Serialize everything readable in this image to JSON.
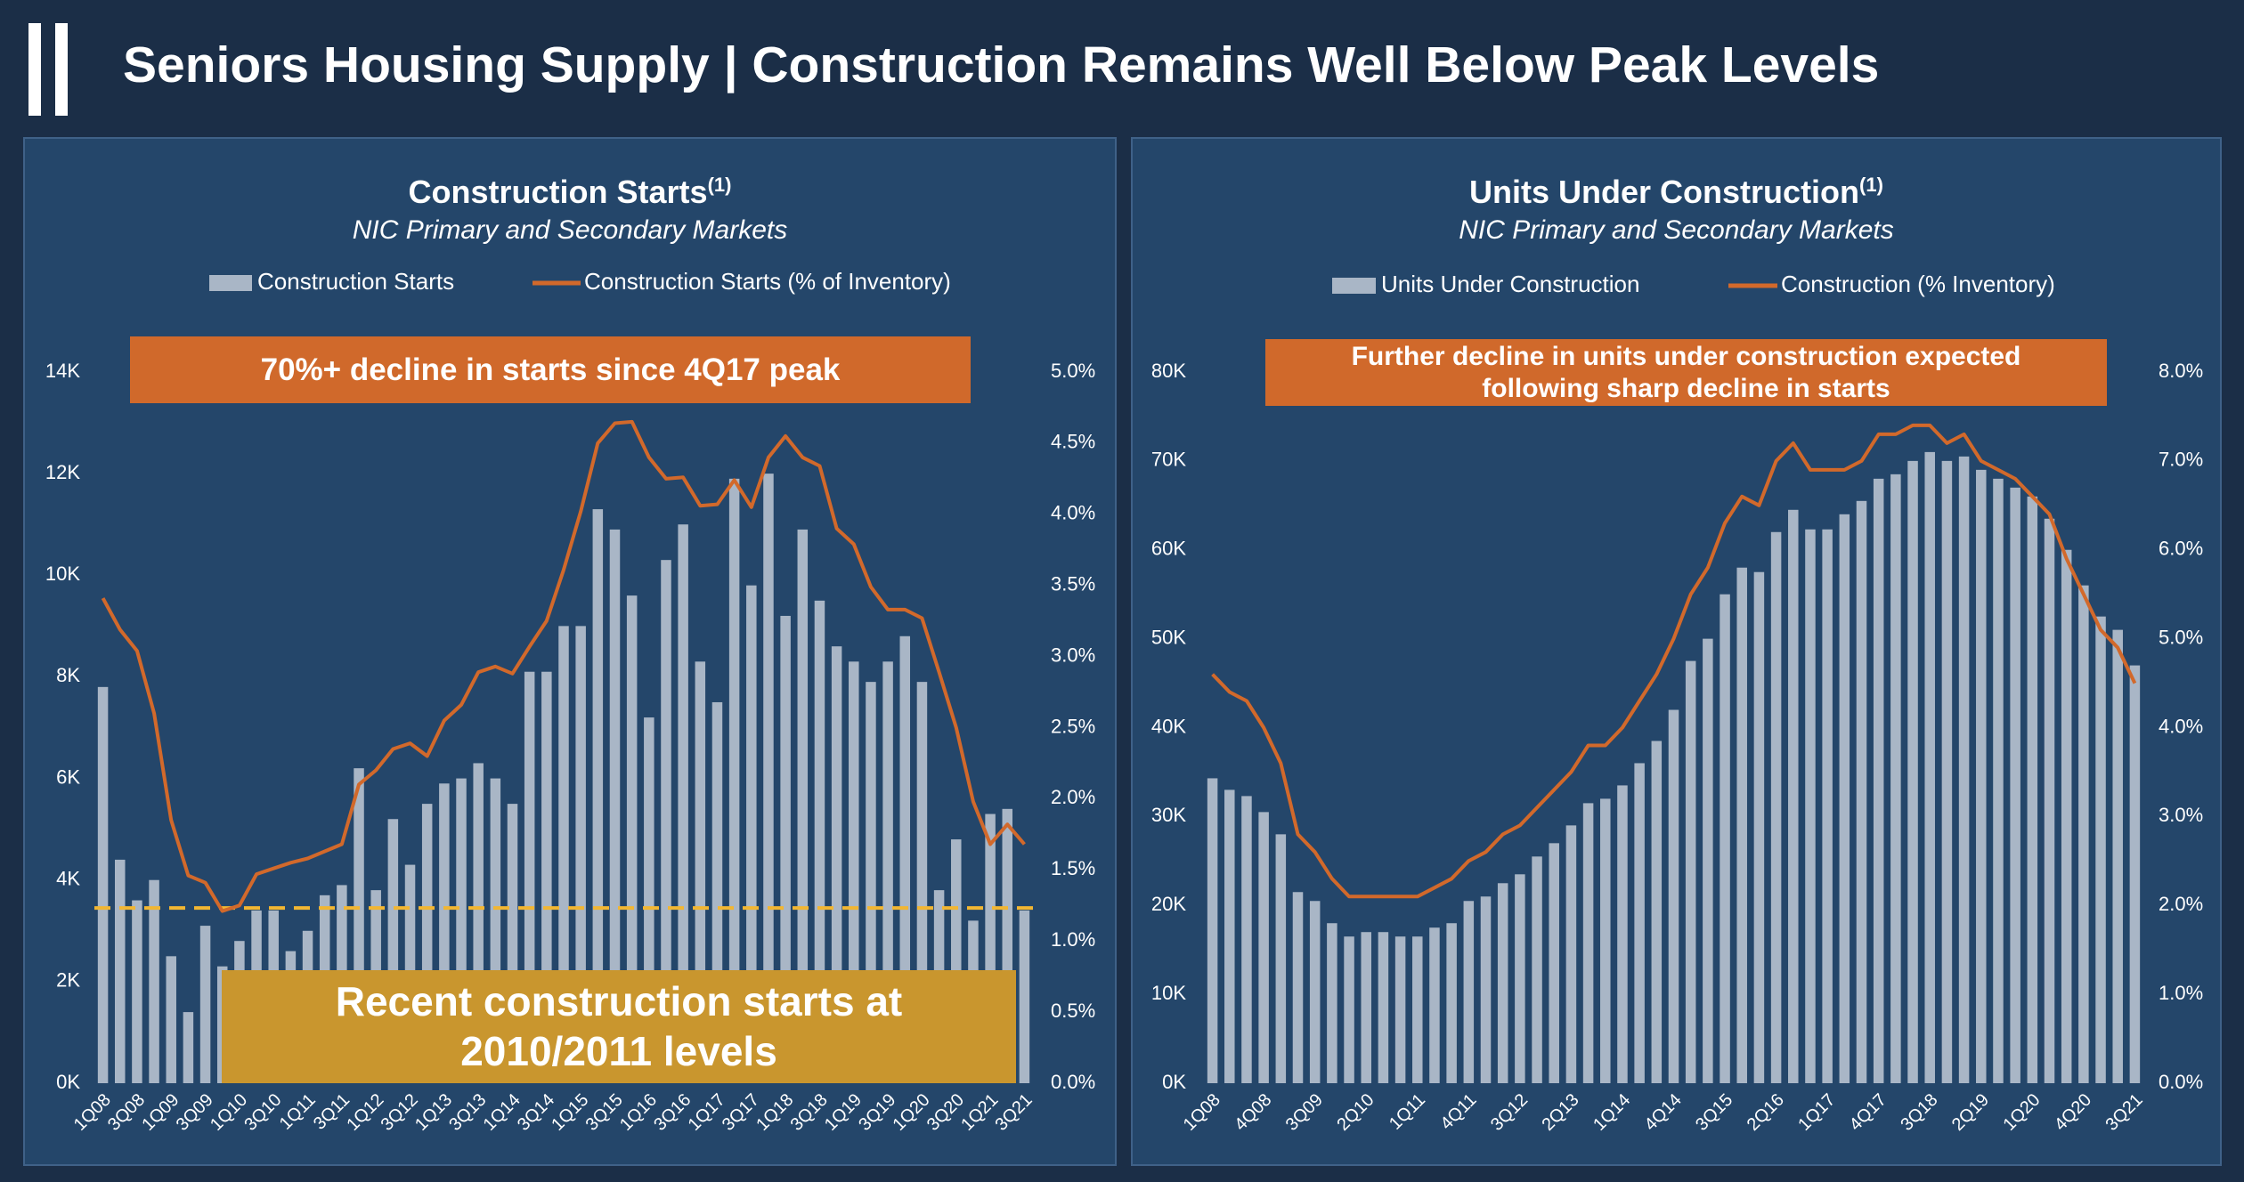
{
  "header": {
    "title": "Seniors Housing Supply | Construction Remains Well Below Peak Levels"
  },
  "chart_data": [
    {
      "type": "combo",
      "title": "Construction Starts",
      "title_note": "(1)",
      "subtitle": "NIC Primary and Secondary Markets",
      "categories": [
        "1Q08",
        null,
        "3Q08",
        null,
        "1Q09",
        null,
        "3Q09",
        null,
        "1Q10",
        null,
        "3Q10",
        null,
        "1Q11",
        null,
        "3Q11",
        null,
        "1Q12",
        null,
        "3Q12",
        null,
        "1Q13",
        null,
        "3Q13",
        null,
        "1Q14",
        null,
        "3Q14",
        null,
        "1Q15",
        null,
        "3Q15",
        null,
        "1Q16",
        null,
        "3Q16",
        null,
        "1Q17",
        null,
        "3Q17",
        null,
        "1Q18",
        null,
        "3Q18",
        null,
        "1Q19",
        null,
        "3Q19",
        null,
        "1Q20",
        null,
        "3Q20",
        null,
        "1Q21",
        null,
        "3Q21"
      ],
      "series": [
        {
          "name": "Construction Starts",
          "type": "bar",
          "color": "#a9b6c6",
          "values": [
            7800,
            4400,
            3600,
            4000,
            2500,
            1400,
            3100,
            2300,
            2800,
            3400,
            3400,
            2600,
            3000,
            3700,
            3900,
            6200,
            3800,
            5200,
            4300,
            5500,
            5900,
            6000,
            6300,
            6000,
            5500,
            8100,
            8100,
            9000,
            9000,
            11300,
            10900,
            9600,
            7200,
            10300,
            11000,
            8300,
            7500,
            11900,
            9800,
            12000,
            9200,
            10900,
            9500,
            8600,
            8300,
            7900,
            8300,
            8800,
            7900,
            3800,
            4800,
            3200,
            5300,
            5400,
            3400
          ]
        },
        {
          "name": "Construction Starts (% of Inventory)",
          "type": "line",
          "axis": "y2",
          "color": "#d2692b",
          "values": [
            3.41,
            3.19,
            3.04,
            2.6,
            1.85,
            1.46,
            1.41,
            1.21,
            1.25,
            1.47,
            1.51,
            1.55,
            1.58,
            1.63,
            1.68,
            2.1,
            2.2,
            2.35,
            2.39,
            2.3,
            2.55,
            2.66,
            2.89,
            2.93,
            2.88,
            3.07,
            3.25,
            3.61,
            4.02,
            4.5,
            4.64,
            4.65,
            4.4,
            4.25,
            4.26,
            4.06,
            4.07,
            4.24,
            4.05,
            4.4,
            4.55,
            4.4,
            4.34,
            3.9,
            3.79,
            3.49,
            3.33,
            3.33,
            3.27,
            2.89,
            2.5,
            1.98,
            1.68,
            1.82,
            1.68
          ]
        }
      ],
      "reference_line": {
        "value": 3450,
        "color": "#f2b632"
      },
      "ylim": [
        0,
        14000
      ],
      "yticks": [
        {
          "value": 0,
          "label": "0K"
        },
        {
          "value": 2000,
          "label": "2K"
        },
        {
          "value": 4000,
          "label": "4K"
        },
        {
          "value": 6000,
          "label": "6K"
        },
        {
          "value": 8000,
          "label": "8K"
        },
        {
          "value": 10000,
          "label": "10K"
        },
        {
          "value": 12000,
          "label": "12K"
        },
        {
          "value": 14000,
          "label": "14K"
        }
      ],
      "y2lim": [
        0,
        5
      ],
      "y2ticks": [
        {
          "value": 0,
          "label": "0.0%"
        },
        {
          "value": 0.5,
          "label": "0.5%"
        },
        {
          "value": 1,
          "label": "1.0%"
        },
        {
          "value": 1.5,
          "label": "1.5%"
        },
        {
          "value": 2,
          "label": "2.0%"
        },
        {
          "value": 2.5,
          "label": "2.5%"
        },
        {
          "value": 3,
          "label": "3.0%"
        },
        {
          "value": 3.5,
          "label": "3.5%"
        },
        {
          "value": 4,
          "label": "4.0%"
        },
        {
          "value": 4.5,
          "label": "4.5%"
        },
        {
          "value": 5,
          "label": "5.0%"
        }
      ],
      "grid": false,
      "annotations": [
        {
          "text": "70%+ decline in starts since 4Q17 peak",
          "color": "#d0692b"
        },
        {
          "text": "Recent construction starts at 2010/2011 levels",
          "color": "#c9962e"
        }
      ]
    },
    {
      "type": "combo",
      "title": "Units Under Construction",
      "title_note": "(1)",
      "subtitle": "NIC Primary and Secondary Markets",
      "categories": [
        "1Q08",
        null,
        null,
        "4Q08",
        null,
        null,
        "3Q09",
        null,
        null,
        "2Q10",
        null,
        null,
        "1Q11",
        null,
        null,
        "4Q11",
        null,
        null,
        "3Q12",
        null,
        null,
        "2Q13",
        null,
        null,
        "1Q14",
        null,
        null,
        "4Q14",
        null,
        null,
        "3Q15",
        null,
        null,
        "2Q16",
        null,
        null,
        "1Q17",
        null,
        null,
        "4Q17",
        null,
        null,
        "3Q18",
        null,
        null,
        "2Q19",
        null,
        null,
        "1Q20",
        null,
        null,
        "4Q20",
        null,
        null,
        "3Q21"
      ],
      "series": [
        {
          "name": "Units Under Construction",
          "type": "bar",
          "color": "#a9b6c6",
          "values": [
            34300,
            33000,
            32300,
            30500,
            28000,
            21500,
            20500,
            18000,
            16500,
            17000,
            17000,
            16500,
            16500,
            17500,
            18000,
            20500,
            21000,
            22500,
            23500,
            25500,
            27000,
            29000,
            31500,
            32000,
            33500,
            36000,
            38500,
            42000,
            47500,
            50000,
            55000,
            58000,
            57500,
            62000,
            64500,
            62300,
            62300,
            64000,
            65500,
            68000,
            68500,
            70000,
            71000,
            70000,
            70500,
            69000,
            68000,
            67000,
            66000,
            63500,
            60000,
            56000,
            52500,
            51000,
            47000
          ]
        },
        {
          "name": "Construction (% Inventory)",
          "type": "line",
          "axis": "y2",
          "color": "#d2692b",
          "values": [
            4.6,
            4.4,
            4.3,
            4.0,
            3.6,
            2.8,
            2.6,
            2.3,
            2.1,
            2.1,
            2.1,
            2.1,
            2.1,
            2.2,
            2.3,
            2.5,
            2.6,
            2.8,
            2.9,
            3.1,
            3.3,
            3.5,
            3.8,
            3.8,
            4.0,
            4.3,
            4.6,
            5.0,
            5.5,
            5.8,
            6.3,
            6.6,
            6.5,
            7.0,
            7.2,
            6.9,
            6.9,
            6.9,
            7.0,
            7.3,
            7.3,
            7.4,
            7.4,
            7.2,
            7.3,
            7.0,
            6.9,
            6.8,
            6.6,
            6.4,
            5.9,
            5.5,
            5.1,
            4.9,
            4.5
          ]
        }
      ],
      "ylim": [
        0,
        80000
      ],
      "yticks": [
        {
          "value": 0,
          "label": "0K"
        },
        {
          "value": 10000,
          "label": "10K"
        },
        {
          "value": 20000,
          "label": "20K"
        },
        {
          "value": 30000,
          "label": "30K"
        },
        {
          "value": 40000,
          "label": "40K"
        },
        {
          "value": 50000,
          "label": "50K"
        },
        {
          "value": 60000,
          "label": "60K"
        },
        {
          "value": 70000,
          "label": "70K"
        },
        {
          "value": 80000,
          "label": "80K"
        }
      ],
      "y2lim": [
        0,
        8
      ],
      "y2ticks": [
        {
          "value": 0,
          "label": "0.0%"
        },
        {
          "value": 1,
          "label": "1.0%"
        },
        {
          "value": 2,
          "label": "2.0%"
        },
        {
          "value": 3,
          "label": "3.0%"
        },
        {
          "value": 4,
          "label": "4.0%"
        },
        {
          "value": 5,
          "label": "5.0%"
        },
        {
          "value": 6,
          "label": "6.0%"
        },
        {
          "value": 7,
          "label": "7.0%"
        },
        {
          "value": 8,
          "label": "8.0%"
        }
      ],
      "grid": false,
      "annotations": [
        {
          "text": "Further decline in units under construction expected following sharp decline in starts",
          "color": "#d0692b"
        }
      ]
    }
  ]
}
